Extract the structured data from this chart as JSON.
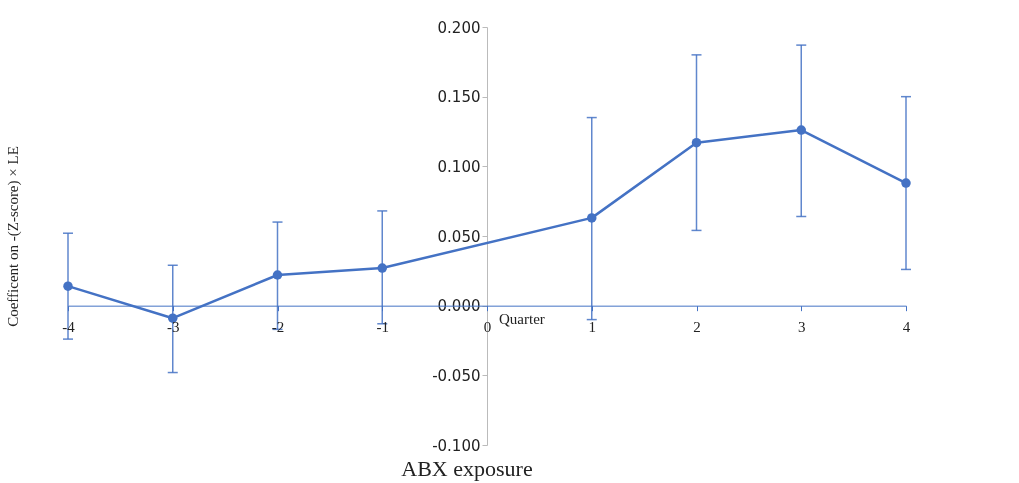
{
  "chart_data": {
    "type": "line",
    "title": "ABX exposure",
    "xlabel": "Quarter",
    "ylabel": "Coefficent on -(Z-score) × LE",
    "x": [
      -4,
      -3,
      -2,
      -1,
      1,
      2,
      3,
      4
    ],
    "series": [
      {
        "color": "#4472c4",
        "values": [
          0.014,
          -0.009,
          0.022,
          0.027,
          0.063,
          0.117,
          0.126,
          0.088
        ],
        "errors": [
          [
            -0.024,
            0.052
          ],
          [
            -0.048,
            0.029
          ],
          [
            -0.017,
            0.06
          ],
          [
            -0.013,
            0.068
          ],
          [
            -0.01,
            0.135
          ],
          [
            0.054,
            0.18
          ],
          [
            0.064,
            0.187
          ],
          [
            0.026,
            0.15
          ]
        ]
      }
    ],
    "xlim": [
      -4,
      4
    ],
    "xticks": [
      -4,
      -3,
      -2,
      -1,
      0,
      1,
      2,
      3,
      4
    ],
    "ylim": [
      -0.1,
      0.2
    ],
    "yticks": [
      {
        "value": -0.1,
        "label": "-0.100"
      },
      {
        "value": -0.05,
        "label": "-0.050"
      },
      {
        "value": 0,
        "label": "0.000"
      },
      {
        "value": 0.05,
        "label": "0.050"
      },
      {
        "value": 0.1,
        "label": "0.100"
      },
      {
        "value": 0.15,
        "label": "0.150"
      },
      {
        "value": 0.2,
        "label": "0.200"
      }
    ],
    "grid": false,
    "marker": "circle",
    "line_style": "solid"
  }
}
